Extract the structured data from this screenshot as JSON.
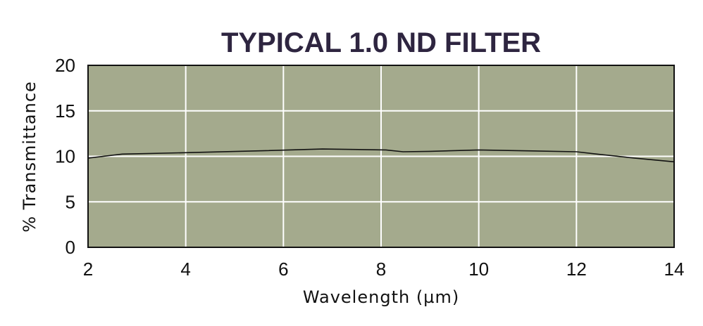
{
  "chart_data": {
    "type": "line",
    "title": "TYPICAL 1.0 ND FILTER",
    "xlabel": "Wavelength (µm)",
    "ylabel": "% Transmittance",
    "xlim": [
      2,
      14
    ],
    "ylim": [
      0,
      20
    ],
    "xticks": [
      2,
      4,
      6,
      8,
      10,
      12,
      14
    ],
    "yticks": [
      0,
      5,
      10,
      15,
      20
    ],
    "grid": true,
    "legend": "none",
    "series": [
      {
        "x": [
          2.0,
          2.7,
          4.0,
          5.5,
          6.8,
          8.1,
          8.45,
          9.0,
          10.0,
          11.0,
          12.0,
          12.5,
          13.2,
          14.0
        ],
        "y": [
          9.8,
          10.25,
          10.4,
          10.6,
          10.8,
          10.7,
          10.5,
          10.55,
          10.7,
          10.6,
          10.5,
          10.2,
          9.8,
          9.4
        ]
      }
    ],
    "colors": {
      "plot_background": "#a4aa8d",
      "grid": "#ffffff",
      "line": "#111111",
      "title": "#2e2540"
    }
  }
}
